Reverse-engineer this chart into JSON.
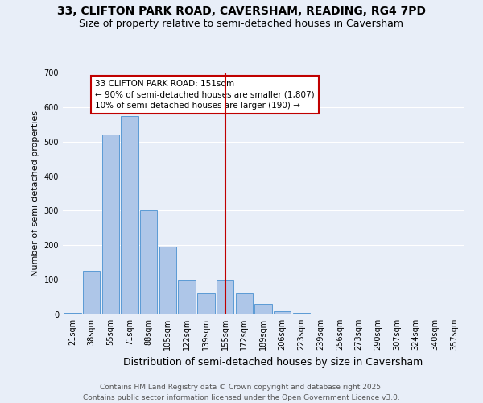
{
  "title": "33, CLIFTON PARK ROAD, CAVERSHAM, READING, RG4 7PD",
  "subtitle": "Size of property relative to semi-detached houses in Caversham",
  "xlabel": "Distribution of semi-detached houses by size in Caversham",
  "ylabel": "Number of semi-detached properties",
  "categories": [
    "21sqm",
    "38sqm",
    "55sqm",
    "71sqm",
    "88sqm",
    "105sqm",
    "122sqm",
    "139sqm",
    "155sqm",
    "172sqm",
    "189sqm",
    "206sqm",
    "223sqm",
    "239sqm",
    "256sqm",
    "273sqm",
    "290sqm",
    "307sqm",
    "324sqm",
    "340sqm",
    "357sqm"
  ],
  "bar_heights": [
    5,
    125,
    520,
    575,
    300,
    197,
    97,
    60,
    97,
    60,
    30,
    10,
    5,
    2,
    1,
    1,
    0,
    0,
    0,
    0,
    0
  ],
  "bar_color": "#aec6e8",
  "bar_edge_color": "#5b9bd5",
  "vline_color": "#c00000",
  "annotation_text": "33 CLIFTON PARK ROAD: 151sqm\n← 90% of semi-detached houses are smaller (1,807)\n10% of semi-detached houses are larger (190) →",
  "annotation_box_color": "#c00000",
  "ylim": [
    0,
    700
  ],
  "yticks": [
    0,
    100,
    200,
    300,
    400,
    500,
    600,
    700
  ],
  "background_color": "#e8eef8",
  "footer": "Contains HM Land Registry data © Crown copyright and database right 2025.\nContains public sector information licensed under the Open Government Licence v3.0.",
  "title_fontsize": 10,
  "subtitle_fontsize": 9,
  "xlabel_fontsize": 9,
  "ylabel_fontsize": 8,
  "tick_fontsize": 7,
  "footer_fontsize": 6.5
}
